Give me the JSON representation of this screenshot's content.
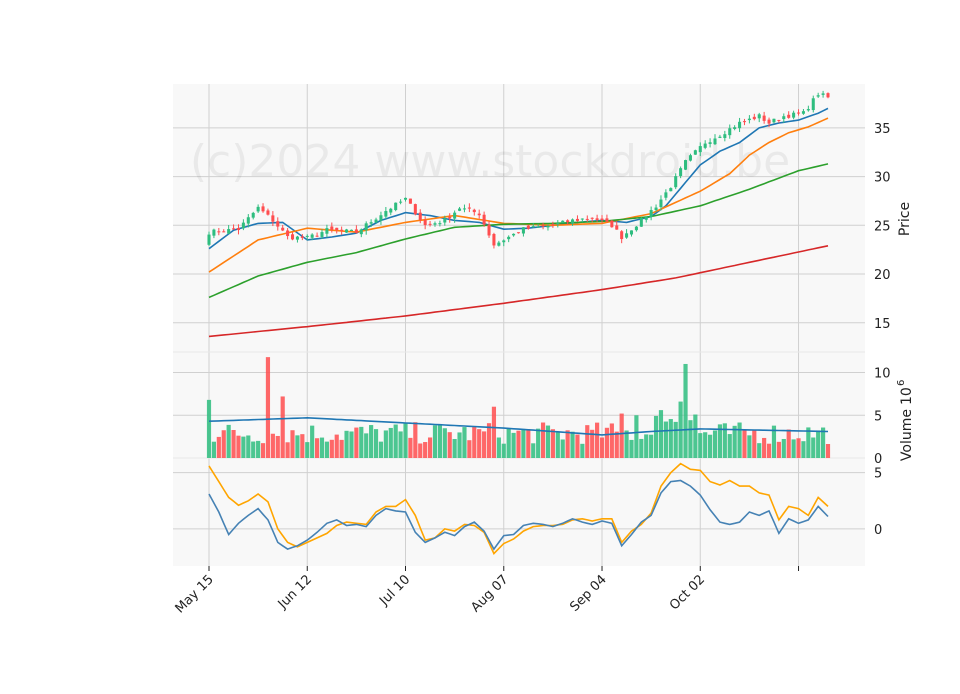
{
  "watermark": "(c)2024 www.stockdroid.be",
  "colors": {
    "up": "#2ebd7f",
    "down": "#ff4d4f",
    "ma_short": "#1f77b4",
    "ma_mid": "#ff7f0e",
    "ma_long": "#2ca02c",
    "ma_xlong": "#d62728",
    "osc_fast": "#4682b4",
    "osc_slow": "#ffa500",
    "panel_bg": "#f8f8f8",
    "grid": "#d0d0d0"
  },
  "chart_data": [
    {
      "type": "candlestick",
      "panel": "price",
      "ylabel": "Price",
      "ylim": [
        12,
        39.5
      ],
      "yticks": [
        "15",
        "20",
        "25",
        "30",
        "35"
      ],
      "xticks": [
        "May 15",
        "Jun 12",
        "Jul 10",
        "Aug 07",
        "Sep 04",
        "Oct 02"
      ],
      "grid": true,
      "price_series": {
        "start_close": 24.3,
        "anchors": [
          [
            0,
            24.3
          ],
          [
            6,
            24.6
          ],
          [
            10,
            26.8
          ],
          [
            13,
            25.5
          ],
          [
            16,
            23.8
          ],
          [
            20,
            23.7
          ],
          [
            24,
            24.5
          ],
          [
            30,
            24.3
          ],
          [
            36,
            26.5
          ],
          [
            40,
            27.7
          ],
          [
            44,
            25.0
          ],
          [
            48,
            25.5
          ],
          [
            51,
            26.8
          ],
          [
            55,
            26.2
          ],
          [
            58,
            23.0
          ],
          [
            61,
            23.8
          ],
          [
            64,
            24.6
          ],
          [
            70,
            25.0
          ],
          [
            74,
            25.5
          ],
          [
            78,
            25.8
          ],
          [
            82,
            25.0
          ],
          [
            84,
            23.8
          ],
          [
            88,
            25.5
          ],
          [
            91,
            27.0
          ],
          [
            94,
            29.0
          ],
          [
            97,
            31.5
          ],
          [
            101,
            33.5
          ],
          [
            104,
            34.3
          ],
          [
            108,
            35.5
          ],
          [
            112,
            36.2
          ],
          [
            114,
            35.5
          ],
          [
            117,
            36.2
          ],
          [
            121,
            36.5
          ],
          [
            124,
            38.5
          ],
          [
            126,
            38.1
          ]
        ]
      },
      "moving_averages": [
        {
          "color_key": "ma_short",
          "points": [
            [
              0,
              22.6
            ],
            [
              5,
              24.5
            ],
            [
              10,
              25.2
            ],
            [
              15,
              25.3
            ],
            [
              20,
              23.5
            ],
            [
              25,
              23.8
            ],
            [
              30,
              24.2
            ],
            [
              35,
              25.5
            ],
            [
              40,
              26.3
            ],
            [
              45,
              26.0
            ],
            [
              50,
              25.5
            ],
            [
              55,
              25.3
            ],
            [
              60,
              24.6
            ],
            [
              65,
              24.7
            ],
            [
              70,
              25.0
            ],
            [
              75,
              25.3
            ],
            [
              80,
              25.5
            ],
            [
              85,
              25.3
            ],
            [
              90,
              25.9
            ],
            [
              93,
              27.0
            ],
            [
              96,
              28.8
            ],
            [
              100,
              31.2
            ],
            [
              104,
              32.6
            ],
            [
              108,
              33.5
            ],
            [
              112,
              35.0
            ],
            [
              116,
              35.5
            ],
            [
              120,
              35.8
            ],
            [
              124,
              36.5
            ],
            [
              126,
              37.0
            ]
          ]
        },
        {
          "color_key": "ma_mid",
          "points": [
            [
              0,
              20.2
            ],
            [
              10,
              23.5
            ],
            [
              20,
              24.7
            ],
            [
              30,
              24.3
            ],
            [
              40,
              25.3
            ],
            [
              50,
              26.0
            ],
            [
              60,
              25.2
            ],
            [
              70,
              25.0
            ],
            [
              80,
              25.2
            ],
            [
              90,
              26.2
            ],
            [
              100,
              28.5
            ],
            [
              106,
              30.3
            ],
            [
              110,
              32.2
            ],
            [
              114,
              33.5
            ],
            [
              118,
              34.5
            ],
            [
              122,
              35.1
            ],
            [
              126,
              36.0
            ]
          ]
        },
        {
          "color_key": "ma_long",
          "points": [
            [
              0,
              17.6
            ],
            [
              10,
              19.8
            ],
            [
              20,
              21.2
            ],
            [
              30,
              22.2
            ],
            [
              40,
              23.6
            ],
            [
              50,
              24.8
            ],
            [
              60,
              25.1
            ],
            [
              70,
              25.2
            ],
            [
              80,
              25.4
            ],
            [
              90,
              25.9
            ],
            [
              100,
              27.0
            ],
            [
              110,
              28.7
            ],
            [
              120,
              30.6
            ],
            [
              126,
              31.3
            ]
          ]
        },
        {
          "color_key": "ma_xlong",
          "points": [
            [
              0,
              13.6
            ],
            [
              20,
              14.6
            ],
            [
              40,
              15.7
            ],
            [
              60,
              17.0
            ],
            [
              80,
              18.4
            ],
            [
              95,
              19.6
            ],
            [
              110,
              21.2
            ],
            [
              126,
              22.9
            ]
          ]
        }
      ]
    },
    {
      "type": "bar",
      "panel": "volume",
      "ylabel": "Volume",
      "ylabel_exp": "6",
      "ylim": [
        0,
        12.4
      ],
      "yticks": [
        "0",
        "5",
        "10"
      ],
      "volume_peaks": [
        [
          0,
          6.8
        ],
        [
          12,
          11.8
        ],
        [
          15,
          7.2
        ],
        [
          58,
          6.0
        ],
        [
          84,
          5.2
        ],
        [
          87,
          5.0
        ],
        [
          97,
          11.0
        ],
        [
          96,
          6.6
        ]
      ],
      "volume_ma_points": [
        [
          0,
          4.3
        ],
        [
          20,
          4.7
        ],
        [
          40,
          4.1
        ],
        [
          60,
          3.5
        ],
        [
          80,
          2.7
        ],
        [
          90,
          3.1
        ],
        [
          100,
          3.4
        ],
        [
          126,
          3.1
        ]
      ]
    },
    {
      "type": "line",
      "panel": "oscillator",
      "ylim": [
        -3.3,
        6.3
      ],
      "yticks": [
        "0",
        "5"
      ],
      "series": [
        {
          "color_key": "osc_fast",
          "points": [
            [
              0,
              3.1
            ],
            [
              2,
              1.5
            ],
            [
              4,
              -0.5
            ],
            [
              6,
              0.5
            ],
            [
              8,
              1.2
            ],
            [
              10,
              1.8
            ],
            [
              12,
              0.8
            ],
            [
              14,
              -1.2
            ],
            [
              16,
              -1.8
            ],
            [
              18,
              -1.5
            ],
            [
              20,
              -1.0
            ],
            [
              22,
              -0.3
            ],
            [
              24,
              0.5
            ],
            [
              26,
              0.8
            ],
            [
              28,
              0.3
            ],
            [
              30,
              0.4
            ],
            [
              32,
              0.2
            ],
            [
              34,
              1.2
            ],
            [
              36,
              1.8
            ],
            [
              38,
              1.6
            ],
            [
              40,
              1.5
            ],
            [
              42,
              -0.3
            ],
            [
              44,
              -1.2
            ],
            [
              46,
              -0.8
            ],
            [
              48,
              -0.3
            ],
            [
              50,
              -0.6
            ],
            [
              52,
              0.2
            ],
            [
              54,
              0.6
            ],
            [
              56,
              -0.2
            ],
            [
              58,
              -1.8
            ],
            [
              60,
              -0.6
            ],
            [
              62,
              -0.5
            ],
            [
              64,
              0.3
            ],
            [
              66,
              0.5
            ],
            [
              68,
              0.4
            ],
            [
              70,
              0.2
            ],
            [
              72,
              0.5
            ],
            [
              74,
              0.9
            ],
            [
              76,
              0.6
            ],
            [
              78,
              0.4
            ],
            [
              80,
              0.7
            ],
            [
              82,
              0.5
            ],
            [
              84,
              -1.5
            ],
            [
              86,
              -0.5
            ],
            [
              88,
              0.6
            ],
            [
              90,
              1.2
            ],
            [
              92,
              3.2
            ],
            [
              94,
              4.2
            ],
            [
              96,
              4.3
            ],
            [
              98,
              3.8
            ],
            [
              100,
              3.0
            ],
            [
              102,
              1.7
            ],
            [
              104,
              0.6
            ],
            [
              106,
              0.4
            ],
            [
              108,
              0.6
            ],
            [
              110,
              1.5
            ],
            [
              112,
              1.2
            ],
            [
              114,
              1.6
            ],
            [
              116,
              -0.4
            ],
            [
              118,
              0.9
            ],
            [
              120,
              0.5
            ],
            [
              122,
              0.8
            ],
            [
              124,
              2.0
            ],
            [
              126,
              1.1
            ]
          ]
        },
        {
          "color_key": "osc_slow",
          "points": [
            [
              0,
              5.6
            ],
            [
              2,
              4.2
            ],
            [
              4,
              2.8
            ],
            [
              6,
              2.1
            ],
            [
              8,
              2.5
            ],
            [
              10,
              3.1
            ],
            [
              12,
              2.4
            ],
            [
              14,
              0.0
            ],
            [
              16,
              -1.2
            ],
            [
              18,
              -1.6
            ],
            [
              20,
              -1.2
            ],
            [
              22,
              -0.8
            ],
            [
              24,
              -0.4
            ],
            [
              26,
              0.3
            ],
            [
              28,
              0.6
            ],
            [
              30,
              0.5
            ],
            [
              32,
              0.4
            ],
            [
              34,
              1.5
            ],
            [
              36,
              2.0
            ],
            [
              38,
              2.0
            ],
            [
              40,
              2.6
            ],
            [
              42,
              1.2
            ],
            [
              44,
              -1.0
            ],
            [
              46,
              -0.8
            ],
            [
              48,
              0.0
            ],
            [
              50,
              -0.2
            ],
            [
              52,
              0.4
            ],
            [
              54,
              0.3
            ],
            [
              56,
              -0.3
            ],
            [
              58,
              -2.2
            ],
            [
              60,
              -1.3
            ],
            [
              62,
              -0.9
            ],
            [
              64,
              -0.2
            ],
            [
              66,
              0.2
            ],
            [
              68,
              0.3
            ],
            [
              70,
              0.3
            ],
            [
              72,
              0.4
            ],
            [
              74,
              0.8
            ],
            [
              76,
              0.9
            ],
            [
              78,
              0.7
            ],
            [
              80,
              0.9
            ],
            [
              82,
              0.9
            ],
            [
              84,
              -1.2
            ],
            [
              86,
              -0.2
            ],
            [
              88,
              0.4
            ],
            [
              90,
              1.4
            ],
            [
              92,
              3.8
            ],
            [
              94,
              5.0
            ],
            [
              96,
              5.8
            ],
            [
              98,
              5.3
            ],
            [
              100,
              5.2
            ],
            [
              102,
              4.2
            ],
            [
              104,
              3.9
            ],
            [
              106,
              4.3
            ],
            [
              108,
              3.8
            ],
            [
              110,
              3.8
            ],
            [
              112,
              3.2
            ],
            [
              114,
              3.0
            ],
            [
              116,
              0.8
            ],
            [
              118,
              2.0
            ],
            [
              120,
              1.8
            ],
            [
              122,
              1.2
            ],
            [
              124,
              2.8
            ],
            [
              126,
              2.0
            ]
          ]
        }
      ]
    }
  ]
}
